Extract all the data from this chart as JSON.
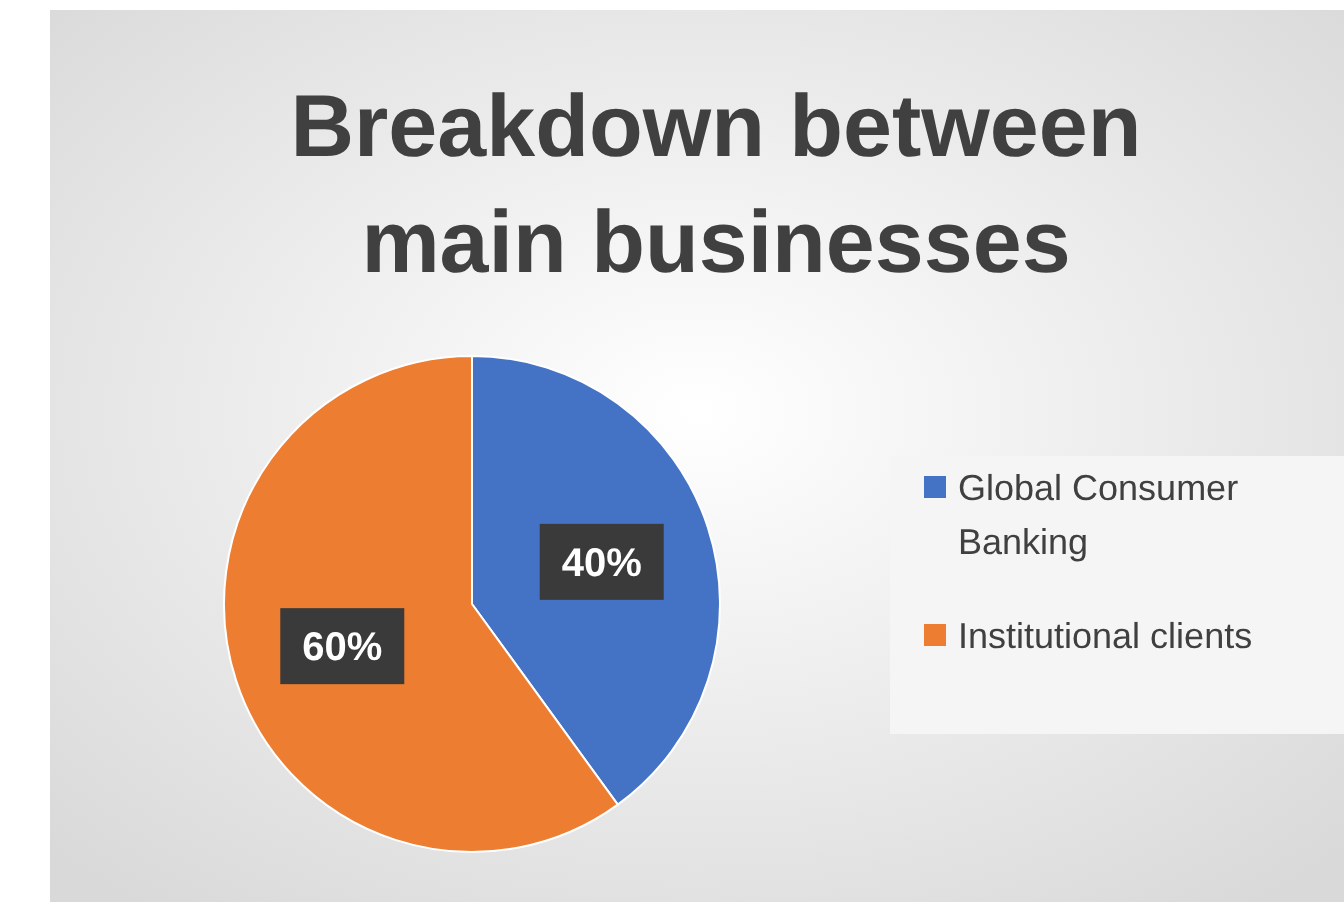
{
  "chart_data": {
    "type": "pie",
    "title": "Breakdown between main businesses",
    "categories": [
      "Global Consumer Banking",
      "Institutional clients"
    ],
    "values": [
      40,
      60
    ],
    "colors": [
      "#4472c4",
      "#ed7d31"
    ],
    "value_labels": [
      "40%",
      "60%"
    ],
    "legend": "right"
  }
}
